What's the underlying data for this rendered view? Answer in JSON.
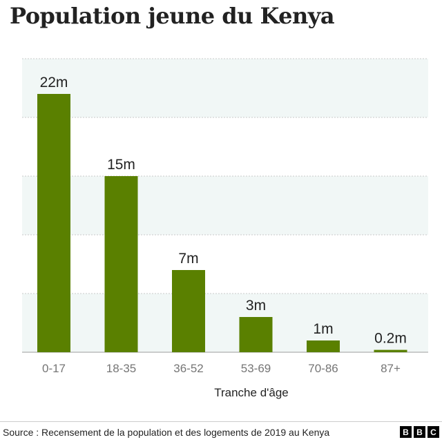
{
  "chart_data": {
    "type": "bar",
    "title": "Population jeune du Kenya",
    "xlabel": "Tranche d'âge",
    "ylabel": "",
    "categories": [
      "0-17",
      "18-35",
      "36-52",
      "53-69",
      "70-86",
      "87+"
    ],
    "values": [
      22,
      15,
      7,
      3,
      1,
      0.2
    ],
    "data_labels": [
      "22m",
      "15m",
      "7m",
      "3m",
      "1m",
      "0.2m"
    ],
    "ylim": [
      0,
      25
    ],
    "grid": true,
    "bar_color": "#5a8000",
    "band_color": "#f1f7f6"
  },
  "footer": {
    "source": "Source : Recensement de la population et des logements de 2019 au Kenya",
    "logo_letters": [
      "B",
      "B",
      "C"
    ]
  }
}
